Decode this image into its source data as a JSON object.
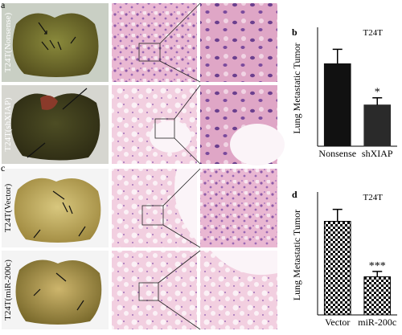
{
  "figure": {
    "panel_labels": [
      "a",
      "b",
      "c",
      "d"
    ],
    "row_labels": [
      "T24T(Nonsense)",
      "T24T(shXIAP)",
      "T24T(Vector)",
      "T24T(miR-200c)"
    ]
  },
  "chart_data": [
    {
      "type": "bar",
      "title": "T24T",
      "y_label": "Lung Metastatic Tumor",
      "categories": [
        "Nonsense",
        "shXIAP"
      ],
      "values": [
        5.7,
        2.85
      ],
      "errors": [
        1.0,
        0.5
      ],
      "significance": [
        null,
        "*"
      ],
      "colors": [
        "#111111",
        "#2a2a2a"
      ],
      "fill_pattern": "solid",
      "ylim": [
        0,
        8
      ]
    },
    {
      "type": "bar",
      "title": "T24T",
      "y_label": "Lung Metastatic Tumor",
      "categories": [
        "Vector",
        "miR-200c"
      ],
      "values": [
        8.6,
        3.5
      ],
      "errors": [
        1.1,
        0.5
      ],
      "significance": [
        null,
        "***"
      ],
      "colors": [
        "#000000",
        "#000000"
      ],
      "fill_pattern": "checkerboard",
      "ylim": [
        0,
        11
      ]
    }
  ]
}
